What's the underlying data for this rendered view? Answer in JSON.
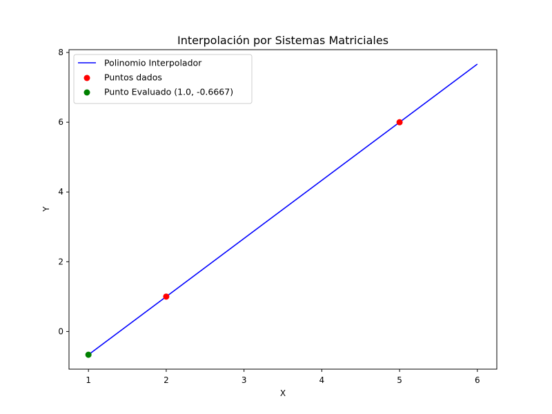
{
  "chart_data": {
    "type": "line",
    "title": "Interpolación por Sistemas Matriciales",
    "xlabel": "X",
    "ylabel": "Y",
    "xlim": [
      0.75,
      6.25
    ],
    "ylim": [
      -1.08,
      8.08
    ],
    "xticks": [
      1,
      2,
      3,
      4,
      5,
      6
    ],
    "yticks": [
      0,
      2,
      4,
      6,
      8
    ],
    "grid": false,
    "legend_position": "upper left",
    "series": [
      {
        "name": "Polinomio Interpolador",
        "kind": "line",
        "color": "#0000ff",
        "x": [
          1,
          6
        ],
        "y": [
          -0.6667,
          7.6667
        ]
      },
      {
        "name": "Puntos dados",
        "kind": "scatter",
        "color": "#ff0000",
        "x": [
          2,
          5
        ],
        "y": [
          1,
          6
        ]
      },
      {
        "name": "Punto Evaluado (1.0, -0.6667)",
        "kind": "scatter",
        "color": "#008000",
        "x": [
          1.0
        ],
        "y": [
          -0.6667
        ]
      }
    ]
  }
}
